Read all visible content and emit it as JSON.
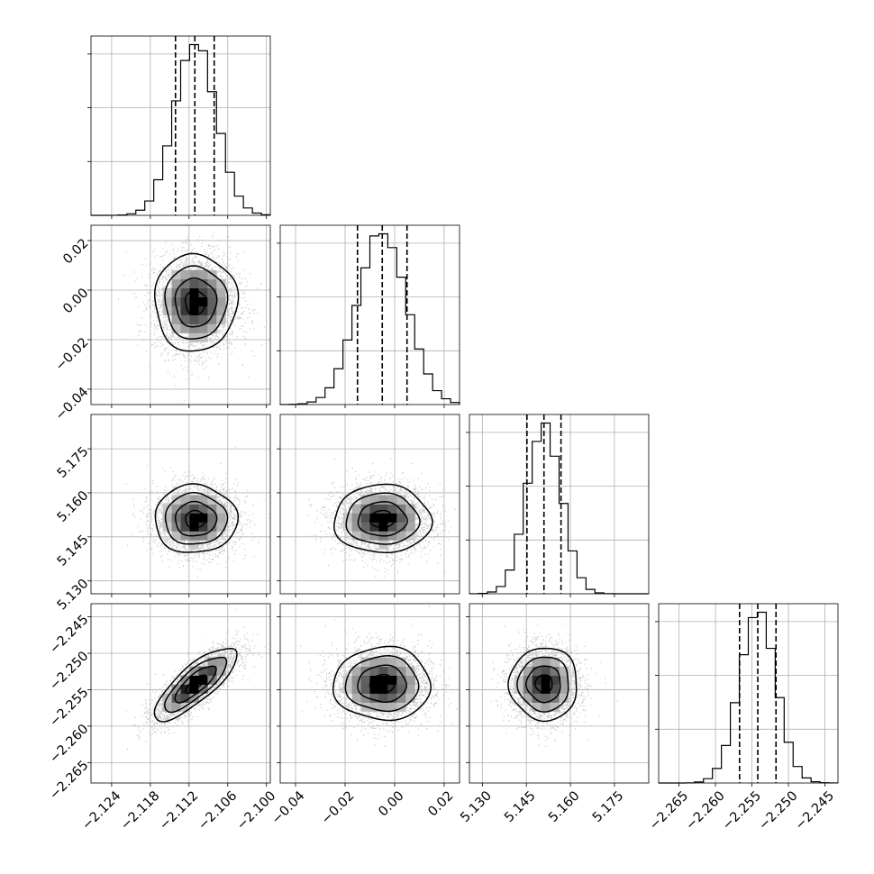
{
  "chart_data": {
    "type": "corner",
    "grid": true,
    "quantile_lines": "dashed",
    "parameters": [
      {
        "mean": -2.111,
        "std": 0.0032,
        "quantiles": [
          -2.1141,
          -2.1111,
          -2.1081
        ],
        "range": [
          -2.1272,
          -2.0994
        ],
        "ticks": [
          -2.124,
          -2.118,
          -2.112,
          -2.106,
          -2.1
        ],
        "tick_labels": [
          "−2.124",
          "−2.118",
          "−2.112",
          "−2.106",
          "−2.100"
        ]
      },
      {
        "mean": -0.005,
        "std": 0.0098,
        "quantiles": [
          -0.015,
          -0.005,
          0.005
        ],
        "range": [
          -0.0462,
          0.0262
        ],
        "ticks": [
          -0.04,
          -0.02,
          0.0,
          0.02
        ],
        "tick_labels": [
          "−0.04",
          "−0.02",
          "0.00",
          "0.02"
        ]
      },
      {
        "mean": 5.151,
        "std": 0.0058,
        "quantiles": [
          5.1452,
          5.151,
          5.1568
        ],
        "range": [
          5.1256,
          5.1867
        ],
        "ticks": [
          5.13,
          5.145,
          5.16,
          5.175
        ],
        "tick_labels": [
          "5.130",
          "5.145",
          "5.160",
          "5.175"
        ]
      },
      {
        "mean": -2.2542,
        "std": 0.0025,
        "quantiles": [
          -2.2567,
          -2.2542,
          -2.2517
        ],
        "range": [
          -2.2678,
          -2.2432
        ],
        "ticks": [
          -2.265,
          -2.26,
          -2.255,
          -2.25,
          -2.245
        ],
        "tick_labels": [
          "−2.265",
          "−2.260",
          "−2.255",
          "−2.250",
          "−2.245"
        ]
      }
    ],
    "correlations": [
      [
        1.0,
        0.0,
        0.0,
        0.8
      ],
      [
        0.0,
        1.0,
        0.0,
        0.0
      ],
      [
        0.0,
        0.0,
        1.0,
        0.0
      ],
      [
        0.8,
        0.0,
        0.0,
        1.0
      ]
    ],
    "x_axis_params": [
      0,
      1,
      2,
      3
    ],
    "y_axis_params": [
      1,
      2,
      3
    ]
  }
}
